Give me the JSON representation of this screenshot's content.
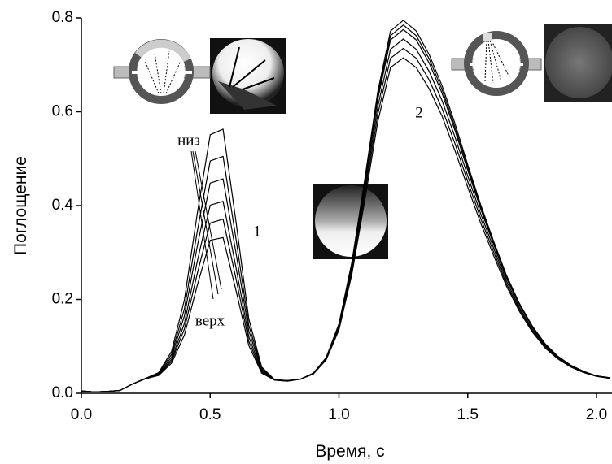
{
  "chart_data": {
    "type": "line",
    "x_label": "Время, с",
    "y_label": "Поглощение",
    "annotations": [
      "низ",
      "верх",
      "1",
      "2"
    ],
    "xlim": [
      0,
      2.06
    ],
    "ylim": [
      0,
      0.8
    ],
    "xticks": [
      {
        "value": 0,
        "label": "0.0"
      },
      {
        "value": 0.5,
        "label": "0.5"
      },
      {
        "value": 1,
        "label": "1.0"
      },
      {
        "value": 1.5,
        "label": "1.5"
      },
      {
        "value": 2,
        "label": "2.0"
      }
    ],
    "yticks": [
      {
        "value": 0,
        "label": "0.0"
      },
      {
        "value": 0.2,
        "label": "0.2"
      },
      {
        "value": 0.4,
        "label": "0.4"
      },
      {
        "value": 0.6,
        "label": "0.6"
      },
      {
        "value": 0.8,
        "label": "0.8"
      }
    ],
    "x": [
      0,
      0.05,
      0.1,
      0.15,
      0.2,
      0.25,
      0.3,
      0.35,
      0.4,
      0.45,
      0.5,
      0.55,
      0.6,
      0.65,
      0.7,
      0.75,
      0.8,
      0.85,
      0.9,
      0.95,
      1,
      1.05,
      1.1,
      1.15,
      1.2,
      1.25,
      1.3,
      1.35,
      1.4,
      1.45,
      1.5,
      1.55,
      1.6,
      1.65,
      1.7,
      1.75,
      1.8,
      1.85,
      1.9,
      1.95,
      2,
      2.05
    ],
    "series": [
      {
        "color": "#000000",
        "values": [
          0.005,
          0.003,
          0.004,
          0.006,
          0.02,
          0.032,
          0.044,
          0.089,
          0.199,
          0.383,
          0.551,
          0.563,
          0.367,
          0.159,
          0.056,
          0.029,
          0.027,
          0.03,
          0.042,
          0.075,
          0.147,
          0.276,
          0.451,
          0.633,
          0.762,
          0.785,
          0.762,
          0.713,
          0.648,
          0.568,
          0.481,
          0.397,
          0.321,
          0.249,
          0.19,
          0.142,
          0.105,
          0.078,
          0.059,
          0.046,
          0.037,
          0.033
        ]
      },
      {
        "color": "#000000",
        "values": [
          0.005,
          0.003,
          0.004,
          0.006,
          0.02,
          0.032,
          0.043,
          0.083,
          0.18,
          0.345,
          0.495,
          0.505,
          0.33,
          0.145,
          0.053,
          0.029,
          0.027,
          0.03,
          0.043,
          0.076,
          0.148,
          0.279,
          0.456,
          0.641,
          0.772,
          0.795,
          0.772,
          0.722,
          0.656,
          0.576,
          0.487,
          0.402,
          0.325,
          0.252,
          0.192,
          0.144,
          0.106,
          0.079,
          0.06,
          0.047,
          0.037,
          0.033
        ]
      },
      {
        "color": "#000000",
        "values": [
          0.005,
          0.003,
          0.004,
          0.006,
          0.02,
          0.032,
          0.041,
          0.077,
          0.165,
          0.313,
          0.448,
          0.457,
          0.3,
          0.133,
          0.05,
          0.029,
          0.027,
          0.03,
          0.042,
          0.075,
          0.145,
          0.273,
          0.445,
          0.625,
          0.753,
          0.775,
          0.753,
          0.704,
          0.64,
          0.561,
          0.475,
          0.393,
          0.318,
          0.246,
          0.188,
          0.141,
          0.104,
          0.078,
          0.059,
          0.046,
          0.037,
          0.033
        ]
      },
      {
        "color": "#000000",
        "values": [
          0.005,
          0.003,
          0.004,
          0.006,
          0.02,
          0.032,
          0.04,
          0.072,
          0.149,
          0.281,
          0.401,
          0.409,
          0.269,
          0.121,
          0.047,
          0.028,
          0.026,
          0.03,
          0.042,
          0.073,
          0.142,
          0.266,
          0.434,
          0.609,
          0.733,
          0.755,
          0.733,
          0.686,
          0.624,
          0.547,
          0.463,
          0.383,
          0.31,
          0.24,
          0.183,
          0.137,
          0.102,
          0.076,
          0.058,
          0.045,
          0.037,
          0.032
        ]
      },
      {
        "color": "#000000",
        "values": [
          0.005,
          0.003,
          0.004,
          0.006,
          0.02,
          0.031,
          0.039,
          0.068,
          0.137,
          0.255,
          0.363,
          0.371,
          0.245,
          0.111,
          0.045,
          0.028,
          0.026,
          0.03,
          0.041,
          0.072,
          0.139,
          0.259,
          0.423,
          0.593,
          0.714,
          0.735,
          0.714,
          0.668,
          0.607,
          0.533,
          0.451,
          0.373,
          0.302,
          0.234,
          0.179,
          0.134,
          0.1,
          0.075,
          0.057,
          0.045,
          0.036,
          0.032
        ]
      },
      {
        "color": "#000000",
        "values": [
          0.005,
          0.003,
          0.004,
          0.006,
          0.02,
          0.031,
          0.038,
          0.064,
          0.124,
          0.23,
          0.326,
          0.332,
          0.22,
          0.102,
          0.043,
          0.028,
          0.026,
          0.03,
          0.041,
          0.071,
          0.135,
          0.253,
          0.411,
          0.577,
          0.694,
          0.715,
          0.694,
          0.649,
          0.591,
          0.518,
          0.439,
          0.363,
          0.294,
          0.229,
          0.175,
          0.131,
          0.097,
          0.073,
          0.056,
          0.044,
          0.036,
          0.032
        ]
      }
    ]
  }
}
